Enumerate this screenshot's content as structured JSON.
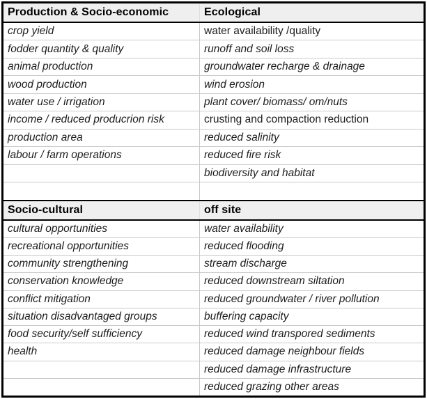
{
  "colors": {
    "frame": "#000000",
    "header_background": "#efefef",
    "gridline": "#c9c9c9",
    "text": "#1c1c1c"
  },
  "table": {
    "sections": [
      {
        "headers": {
          "left": "Production & Socio-economic",
          "right": "Ecological"
        },
        "rows": [
          {
            "left": "crop yield",
            "right": "water availability /quality"
          },
          {
            "left": "fodder quantity & quality",
            "right": "runoff and soil loss"
          },
          {
            "left": "animal production",
            "right": "groundwater recharge & drainage"
          },
          {
            "left": "wood production",
            "right": "wind erosion"
          },
          {
            "left": "water use / irrigation",
            "right": "plant cover/ biomass/ om/nuts"
          },
          {
            "left": "income / reduced producrion risk",
            "right": "crusting and compaction reduction"
          },
          {
            "left": "production area",
            "right": "reduced salinity"
          },
          {
            "left": "labour / farm operations",
            "right": "reduced fire risk"
          },
          {
            "left": "",
            "right": "biodiversity and habitat"
          },
          {
            "left": "",
            "right": ""
          }
        ]
      },
      {
        "headers": {
          "left": "Socio-cultural",
          "right": "off site"
        },
        "rows": [
          {
            "left": "cultural opportunities",
            "right": "water availability"
          },
          {
            "left": "recreational opportunities",
            "right": "reduced flooding"
          },
          {
            "left": "community strengthening",
            "right": "stream discharge"
          },
          {
            "left": "conservation knowledge",
            "right": "reduced downstream siltation"
          },
          {
            "left": "conflict mitigation",
            "right": "reduced groundwater / river pollution"
          },
          {
            "left": "situation disadvantaged groups",
            "right": "buffering capacity"
          },
          {
            "left": "food security/self sufficiency",
            "right": "reduced wind transpored sediments"
          },
          {
            "left": "health",
            "right": "reduced damage neighbour fields"
          },
          {
            "left": "",
            "right": "reduced damage infrastructure"
          },
          {
            "left": "",
            "right": "reduced grazing other areas"
          }
        ]
      }
    ]
  }
}
